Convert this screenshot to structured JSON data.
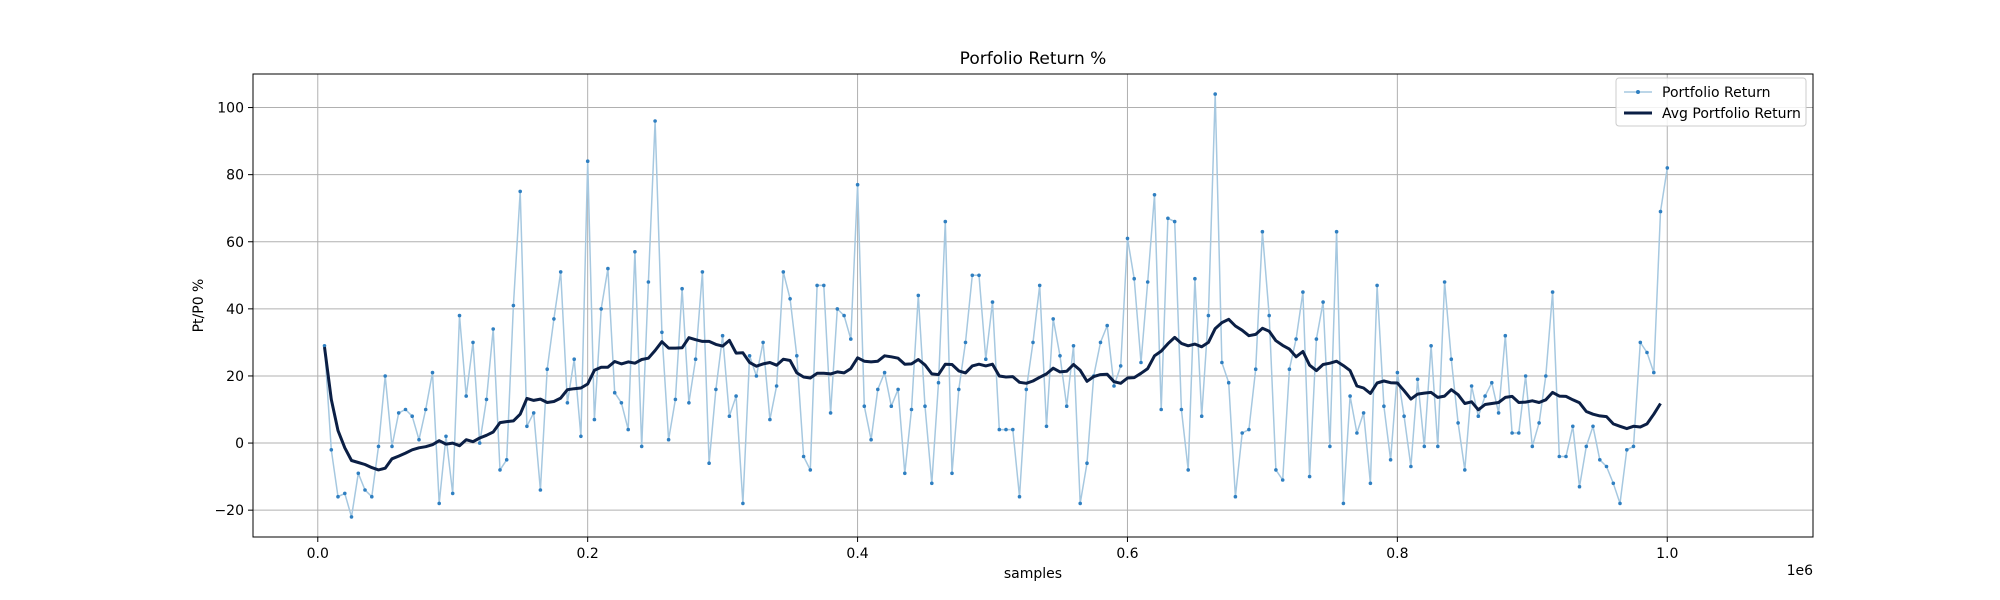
{
  "chart_data": {
    "type": "line",
    "title": "Porfolio Return %",
    "xlabel": "samples",
    "ylabel": "Pt/P0 %",
    "x_offset_text": "1e6",
    "xlim": [
      -0.048,
      1.108
    ],
    "ylim": [
      -28,
      110
    ],
    "xticks": [
      0.0,
      0.2,
      0.4,
      0.6,
      0.8,
      1.0
    ],
    "xtick_labels": [
      "0.0",
      "0.2",
      "0.4",
      "0.6",
      "0.8",
      "1.0"
    ],
    "yticks": [
      -20,
      0,
      20,
      40,
      60,
      80,
      100
    ],
    "ytick_labels": [
      "−20",
      "0",
      "20",
      "40",
      "60",
      "80",
      "100"
    ],
    "grid": true,
    "legend_position": "top-right",
    "series": [
      {
        "name": "Portfolio Return",
        "color": "#a6c8e0",
        "marker_color": "#2f7fc1",
        "style": "thin line with point markers",
        "x_start": 0.005,
        "x_step": 0.005,
        "values": [
          29,
          -2,
          -16,
          -15,
          -22,
          -9,
          -14,
          -16,
          -1,
          20,
          -1,
          9,
          10,
          8,
          1,
          10,
          21,
          -18,
          2,
          -15,
          38,
          14,
          30,
          0,
          13,
          34,
          -8,
          -5,
          41,
          75,
          5,
          9,
          -14,
          22,
          37,
          51,
          12,
          25,
          2,
          84,
          7,
          40,
          52,
          15,
          12,
          4,
          57,
          -1,
          48,
          96,
          33,
          1,
          13,
          46,
          12,
          25,
          51,
          -6,
          16,
          32,
          8,
          14,
          -18,
          26,
          20,
          30,
          7,
          17,
          51,
          43,
          26,
          -4,
          -8,
          47,
          47,
          9,
          40,
          38,
          31,
          77,
          11,
          1,
          16,
          21,
          11,
          16,
          -9,
          10,
          44,
          11,
          -12,
          18,
          66,
          -9,
          16,
          30,
          50,
          50,
          25,
          42,
          4,
          4,
          4,
          -16,
          16,
          30,
          47,
          5,
          37,
          26,
          11,
          29,
          -18,
          -6,
          20,
          30,
          35,
          17,
          23,
          61,
          49,
          24,
          48,
          74,
          10,
          67,
          66,
          10,
          -8,
          49,
          8,
          38,
          104,
          24,
          18,
          -16,
          3,
          4,
          22,
          63,
          38,
          -8,
          -11,
          22,
          31,
          45,
          -10,
          31,
          42,
          -1,
          63,
          -18,
          14,
          3,
          9,
          -12,
          47,
          11,
          -5,
          21,
          8,
          -7,
          19,
          -1,
          29,
          -1,
          48,
          25,
          6,
          -8,
          17,
          8,
          14,
          18,
          9,
          32,
          3,
          3,
          20,
          -1,
          6,
          20,
          45,
          -4,
          -4,
          5,
          -13,
          -1,
          5,
          -5,
          -7,
          -12,
          -18,
          -2,
          -1,
          30,
          27,
          21,
          69,
          82
        ]
      },
      {
        "name": "Avg Portfolio Return",
        "color": "#0b1f45",
        "style": "thick line",
        "x_start": 0.005,
        "x_step": 0.005,
        "values": [
          28.6,
          13.0,
          3.7,
          -1.4,
          -5.2,
          -5.8,
          -6.4,
          -7.3,
          -8.0,
          -7.5,
          -4.7,
          -3.9,
          -3.0,
          -2.0,
          -1.4,
          -1.1,
          -0.5,
          0.7,
          -0.3,
          0.0,
          -0.8,
          1.0,
          0.4,
          1.5,
          2.3,
          3.3,
          6.1,
          6.4,
          6.6,
          8.6,
          13.3,
          12.7,
          13.1,
          12.1,
          12.4,
          13.4,
          15.9,
          16.2,
          16.4,
          17.6,
          21.7,
          22.6,
          22.6,
          24.3,
          23.6,
          24.2,
          23.8,
          24.9,
          25.3,
          27.6,
          30.2,
          28.3,
          28.3,
          28.4,
          31.4,
          30.8,
          30.3,
          30.3,
          29.4,
          28.9,
          30.6,
          26.8,
          26.9,
          24.0,
          22.9,
          23.6,
          24.0,
          23.2,
          25.0,
          24.6,
          20.9,
          19.7,
          19.4,
          20.8,
          20.8,
          20.6,
          21.2,
          20.9,
          22.2,
          25.4,
          24.4,
          24.2,
          24.4,
          26.0,
          25.7,
          25.3,
          23.5,
          23.6,
          24.9,
          23.3,
          20.6,
          20.4,
          23.5,
          23.4,
          21.5,
          20.9,
          23.0,
          23.5,
          23.0,
          23.5,
          20.0,
          19.7,
          19.8,
          18.1,
          17.8,
          18.5,
          19.6,
          20.6,
          22.3,
          21.2,
          21.4,
          23.4,
          21.7,
          18.4,
          19.8,
          20.4,
          20.5,
          18.3,
          17.8,
          19.4,
          19.5,
          20.8,
          22.2,
          26.0,
          27.4,
          29.6,
          31.5,
          29.7,
          29.0,
          29.5,
          28.7,
          30.0,
          34.1,
          35.9,
          36.9,
          34.9,
          33.6,
          32.0,
          32.4,
          34.2,
          33.3,
          30.5,
          29.1,
          28.0,
          25.7,
          27.3,
          23.2,
          21.6,
          23.4,
          23.8,
          24.4,
          23.1,
          21.6,
          17.0,
          16.4,
          14.8,
          17.9,
          18.5,
          18.0,
          17.9,
          15.6,
          13.1,
          14.6,
          14.9,
          15.1,
          13.6,
          14.0,
          15.9,
          14.4,
          11.8,
          12.3,
          9.9,
          11.5,
          11.8,
          12.1,
          13.6,
          13.9,
          12.1,
          12.2,
          12.6,
          12.1,
          12.9,
          15.1,
          14.0,
          13.9,
          12.9,
          12.0,
          9.4,
          8.6,
          8.1,
          7.9,
          5.7,
          5.0,
          4.3,
          5.0,
          4.8,
          5.7,
          8.6,
          11.8
        ]
      }
    ]
  }
}
